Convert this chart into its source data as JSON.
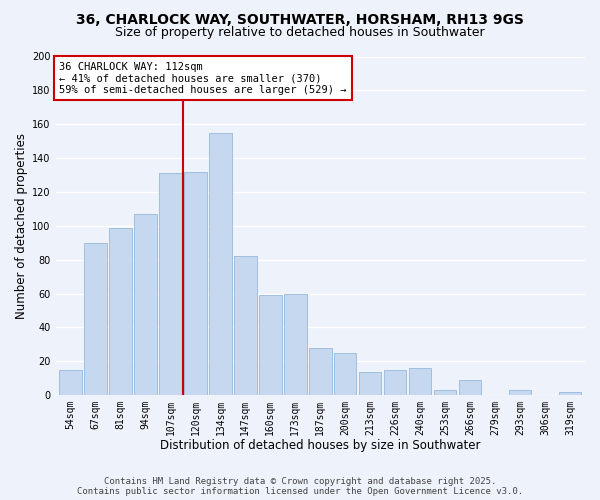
{
  "title": "36, CHARLOCK WAY, SOUTHWATER, HORSHAM, RH13 9GS",
  "subtitle": "Size of property relative to detached houses in Southwater",
  "xlabel": "Distribution of detached houses by size in Southwater",
  "ylabel": "Number of detached properties",
  "bar_labels": [
    "54sqm",
    "67sqm",
    "81sqm",
    "94sqm",
    "107sqm",
    "120sqm",
    "134sqm",
    "147sqm",
    "160sqm",
    "173sqm",
    "187sqm",
    "200sqm",
    "213sqm",
    "226sqm",
    "240sqm",
    "253sqm",
    "266sqm",
    "279sqm",
    "293sqm",
    "306sqm",
    "319sqm"
  ],
  "bar_values": [
    15,
    90,
    99,
    107,
    131,
    132,
    155,
    82,
    59,
    60,
    28,
    25,
    14,
    15,
    16,
    3,
    9,
    0,
    3,
    0,
    2
  ],
  "bar_color": "#c5d8f0",
  "bar_edge_color": "#a0bede",
  "vline_x_index": 4.5,
  "vline_color": "#cc0000",
  "annotation_text": "36 CHARLOCK WAY: 112sqm\n← 41% of detached houses are smaller (370)\n59% of semi-detached houses are larger (529) →",
  "annotation_box_color": "white",
  "annotation_box_edge_color": "#cc0000",
  "ylim": [
    0,
    200
  ],
  "yticks": [
    0,
    20,
    40,
    60,
    80,
    100,
    120,
    140,
    160,
    180,
    200
  ],
  "footer_text": "Contains HM Land Registry data © Crown copyright and database right 2025.\nContains public sector information licensed under the Open Government Licence v3.0.",
  "background_color": "#eef2fa",
  "grid_color": "white",
  "title_fontsize": 10,
  "subtitle_fontsize": 9,
  "axis_label_fontsize": 8.5,
  "tick_fontsize": 7,
  "annotation_fontsize": 7.5,
  "footer_fontsize": 6.5
}
